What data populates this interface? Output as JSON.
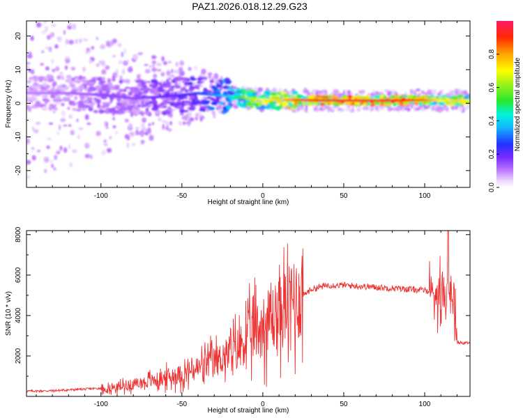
{
  "title": "PAZ1.2026.018.12.29.G23",
  "chart_data": [
    {
      "type": "heatmap",
      "title": "PAZ1.2026.018.12.29.G23",
      "xlabel": "Height of straight line (km)",
      "ylabel": "Frequency (Hz)",
      "xlim": [
        -146,
        128
      ],
      "ylim": [
        -25,
        24.5
      ],
      "xticks": [
        -100,
        -50,
        0,
        50,
        100
      ],
      "yticks": [
        -20,
        -10,
        0,
        10,
        20
      ],
      "xtick_labels": [
        "-100",
        "-50",
        "0",
        "50",
        "100"
      ],
      "ytick_labels": [
        "-20",
        "-10",
        "0",
        "10",
        "20"
      ],
      "ridge": {
        "description": "dominant spectral line vs height",
        "x": [
          -140,
          -120,
          -100,
          -80,
          -60,
          -40,
          -20,
          -10,
          0,
          10,
          20,
          40,
          60,
          80,
          100,
          110,
          120,
          128
        ],
        "freq": [
          3,
          3,
          2.5,
          1.5,
          2,
          3,
          2,
          1.5,
          1,
          1,
          1,
          0.8,
          0.8,
          0.8,
          1,
          0.8,
          0.8,
          0.8
        ],
        "amplitude": [
          0.1,
          0.12,
          0.15,
          0.15,
          0.2,
          0.25,
          0.4,
          0.6,
          0.7,
          0.75,
          0.85,
          0.95,
          0.95,
          0.95,
          0.85,
          0.7,
          0.75,
          0.7
        ]
      },
      "colorbar": {
        "label": "Normalized spectral amplitude",
        "range": [
          0,
          1
        ],
        "ticks": [
          0.0,
          0.2,
          0.4,
          0.6,
          0.8
        ],
        "tick_labels": [
          "0.0",
          "0.2",
          "0.4",
          "0.6",
          "0.8"
        ]
      }
    },
    {
      "type": "line",
      "xlabel": "Height of straight line (km)",
      "ylabel": "SNR (10 * v/v)",
      "xlim": [
        -146,
        128
      ],
      "ylim": [
        0,
        8200
      ],
      "xticks": [
        -100,
        -50,
        0,
        50,
        100
      ],
      "yticks": [
        2000,
        4000,
        6000,
        8000
      ],
      "xtick_labels": [
        "-100",
        "-50",
        "0",
        "50",
        "100"
      ],
      "ytick_labels": [
        "2000",
        "4000",
        "6000",
        "8000"
      ],
      "color": "#ee3333",
      "series": [
        {
          "name": "SNR",
          "x": [
            -146,
            -130,
            -110,
            -100,
            -90,
            -80,
            -70,
            -60,
            -50,
            -40,
            -30,
            -20,
            -15,
            -10,
            -5,
            0,
            5,
            10,
            15,
            20,
            25,
            30,
            40,
            50,
            60,
            70,
            80,
            90,
            100,
            105,
            110,
            113,
            115,
            118,
            120,
            122,
            125,
            128
          ],
          "y": [
            200,
            220,
            300,
            350,
            450,
            600,
            750,
            900,
            1100,
            1400,
            1700,
            2100,
            2400,
            2900,
            3200,
            3500,
            3800,
            4100,
            4400,
            4700,
            5000,
            5300,
            5500,
            5500,
            5450,
            5400,
            5350,
            5300,
            5250,
            5200,
            5150,
            5200,
            5150,
            5150,
            2700,
            2650,
            2650,
            2650
          ]
        }
      ]
    }
  ]
}
